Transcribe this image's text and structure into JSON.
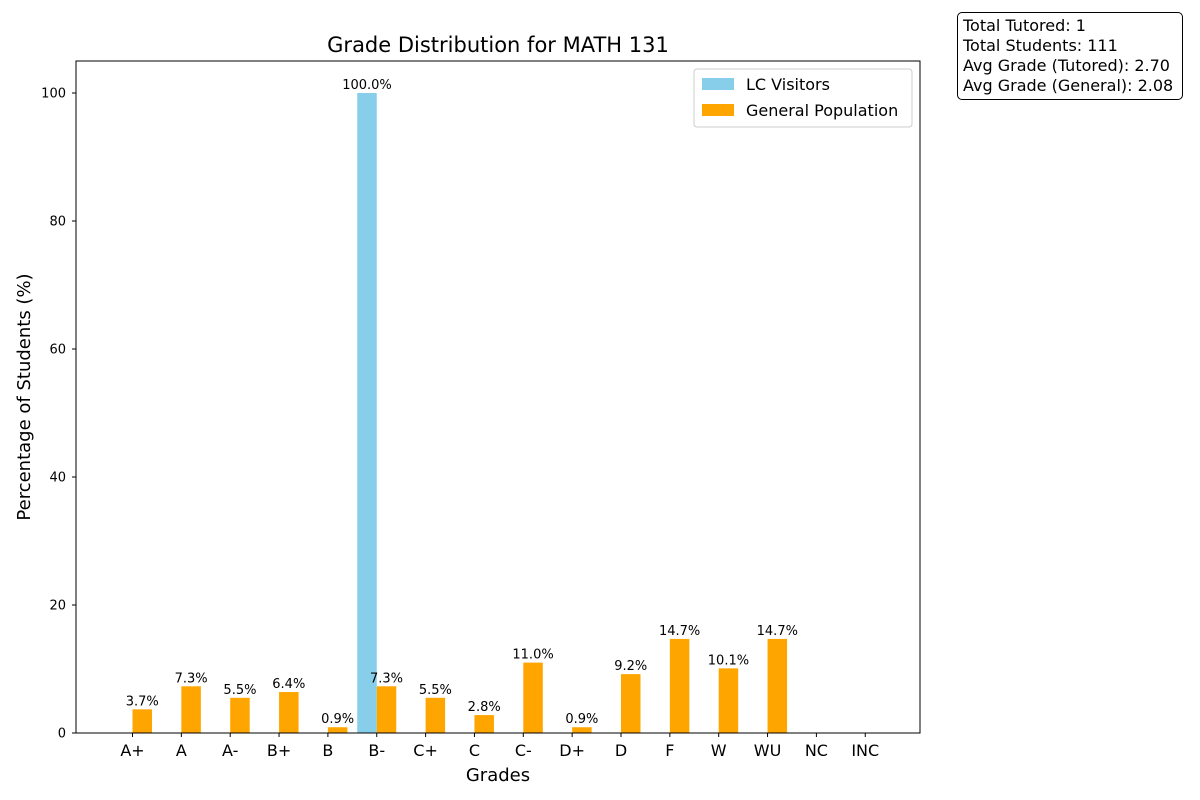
{
  "chart_data": {
    "type": "bar",
    "title": "Grade Distribution for MATH 131",
    "xlabel": "Grades",
    "ylabel": "Percentage of Students (%)",
    "categories": [
      "A+",
      "A",
      "A-",
      "B+",
      "B",
      "B-",
      "C+",
      "C",
      "C-",
      "D+",
      "D",
      "F",
      "W",
      "WU",
      "NC",
      "INC"
    ],
    "ylim": [
      0,
      105
    ],
    "yticks": [
      0,
      20,
      40,
      60,
      80,
      100
    ],
    "grid": false,
    "legend_position": "top-right",
    "series": [
      {
        "name": "LC Visitors",
        "color": "#87ceeb",
        "values": [
          0,
          0,
          0,
          0,
          0,
          100.0,
          0,
          0,
          0,
          0,
          0,
          0,
          0,
          0,
          0,
          0
        ],
        "labels": [
          "",
          "",
          "",
          "",
          "",
          "100.0%",
          "",
          "",
          "",
          "",
          "",
          "",
          "",
          "",
          "",
          ""
        ]
      },
      {
        "name": "General Population",
        "color": "#ffa500",
        "values": [
          3.7,
          7.3,
          5.5,
          6.4,
          0.9,
          7.3,
          5.5,
          2.8,
          11.0,
          0.9,
          9.2,
          14.7,
          10.1,
          14.7,
          0,
          0
        ],
        "labels": [
          "3.7%",
          "7.3%",
          "5.5%",
          "6.4%",
          "0.9%",
          "7.3%",
          "5.5%",
          "2.8%",
          "11.0%",
          "0.9%",
          "9.2%",
          "14.7%",
          "10.1%",
          "14.7%",
          "",
          ""
        ]
      }
    ]
  },
  "stats": {
    "total_tutored": "Total Tutored: 1",
    "total_students": "Total Students: 111",
    "avg_tutored": "Avg Grade (Tutored): 2.70",
    "avg_general": "Avg Grade (General): 2.08"
  }
}
